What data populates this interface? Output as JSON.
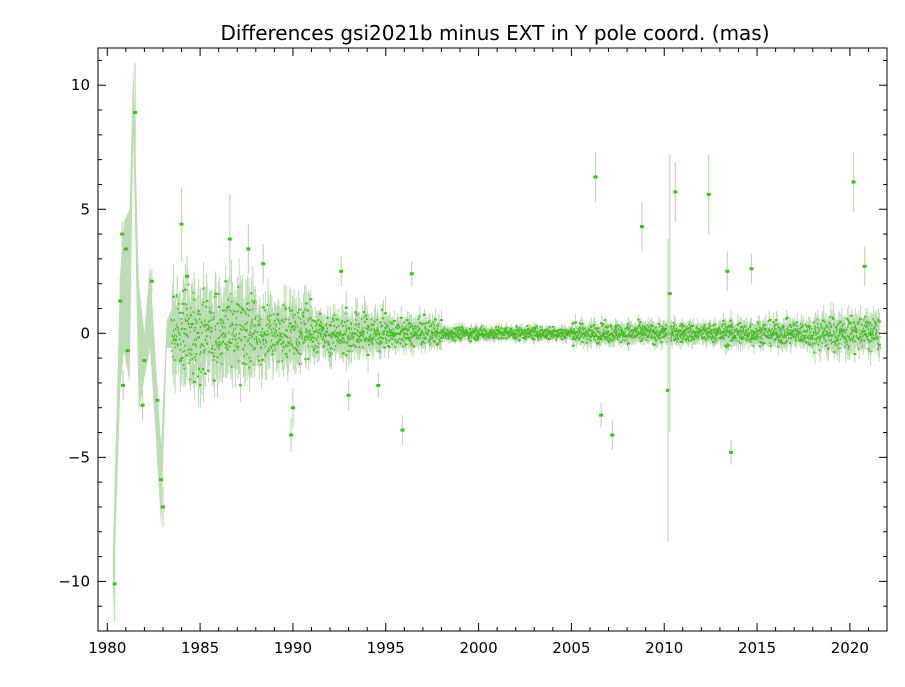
{
  "chart_data": {
    "type": "scatter",
    "title": "Differences gsi2021b minus EXT in Y pole coord. (mas)",
    "xlabel": "",
    "ylabel": "",
    "xlim": [
      1979.5,
      2022.0
    ],
    "ylim": [
      -12.0,
      11.5
    ],
    "x_ticks": [
      1980,
      1985,
      1990,
      1995,
      2000,
      2005,
      2010,
      2015,
      2020
    ],
    "y_ticks": [
      -10,
      -5,
      0,
      5,
      10
    ],
    "x_tick_labels": [
      "1980",
      "1985",
      "1990",
      "1995",
      "2000",
      "2005",
      "2010",
      "2015",
      "2020"
    ],
    "y_tick_labels": [
      "−10",
      "−5",
      "0",
      "5",
      "10"
    ],
    "grid": false,
    "colors": {
      "points": "#44bb22",
      "error_bars": "#bcdcb4",
      "axes": "#000000"
    },
    "early_band": {
      "x": [
        1980.3,
        1980.7,
        1980.9,
        1981.2,
        1981.4,
        1981.7,
        1982.0,
        1982.3,
        1982.6,
        1982.9,
        1983.2,
        1983.5,
        1983.9
      ],
      "upper": [
        -8.8,
        2.5,
        4.5,
        5.0,
        10.9,
        2.0,
        0.0,
        2.8,
        -1.0,
        -4.5,
        0.5,
        1.0,
        1.2
      ],
      "lower": [
        -11.6,
        -2.2,
        -0.7,
        -2.0,
        8.0,
        -3.2,
        -1.8,
        -0.6,
        -4.0,
        -7.8,
        -0.6,
        -0.6,
        -0.8
      ]
    },
    "highlighted_points": [
      {
        "x": 1980.4,
        "y": -10.1,
        "err": 1.5
      },
      {
        "x": 1980.7,
        "y": 1.3,
        "err": 1.0
      },
      {
        "x": 1980.8,
        "y": 4.0,
        "err": 0.5
      },
      {
        "x": 1980.85,
        "y": -2.1,
        "err": 0.6
      },
      {
        "x": 1981.0,
        "y": 3.4,
        "err": 0.6
      },
      {
        "x": 1981.1,
        "y": -0.7,
        "err": 0.5
      },
      {
        "x": 1981.5,
        "y": 8.9,
        "err": 2.0
      },
      {
        "x": 1981.9,
        "y": -2.9,
        "err": 0.6
      },
      {
        "x": 1982.0,
        "y": -1.1,
        "err": 0.5
      },
      {
        "x": 1982.4,
        "y": 2.1,
        "err": 0.5
      },
      {
        "x": 1982.7,
        "y": -2.7,
        "err": 0.4
      },
      {
        "x": 1982.9,
        "y": -5.9,
        "err": 0.8
      },
      {
        "x": 1983.0,
        "y": -7.0,
        "err": 0.8
      },
      {
        "x": 1984.0,
        "y": 4.4,
        "err": 1.5
      },
      {
        "x": 1984.3,
        "y": 2.3,
        "err": 0.8
      },
      {
        "x": 1986.6,
        "y": 3.8,
        "err": 1.8
      },
      {
        "x": 1987.6,
        "y": 3.4,
        "err": 1.0
      },
      {
        "x": 1988.4,
        "y": 2.8,
        "err": 0.8
      },
      {
        "x": 1989.9,
        "y": -4.1,
        "err": 0.7
      },
      {
        "x": 1990.0,
        "y": -3.0,
        "err": 0.8
      },
      {
        "x": 1992.6,
        "y": 2.5,
        "err": 0.6
      },
      {
        "x": 1993.0,
        "y": -2.5,
        "err": 0.6
      },
      {
        "x": 1994.6,
        "y": -2.1,
        "err": 0.5
      },
      {
        "x": 1995.9,
        "y": -3.9,
        "err": 0.6
      },
      {
        "x": 1996.4,
        "y": 2.4,
        "err": 0.5
      },
      {
        "x": 2006.3,
        "y": 6.3,
        "err": 1.0
      },
      {
        "x": 2006.6,
        "y": -3.3,
        "err": 0.5
      },
      {
        "x": 2007.2,
        "y": -4.1,
        "err": 0.6
      },
      {
        "x": 2008.8,
        "y": 4.3,
        "err": 1.0
      },
      {
        "x": 2010.2,
        "y": -2.3,
        "err": 6.1
      },
      {
        "x": 2010.3,
        "y": 1.6,
        "err": 5.6
      },
      {
        "x": 2010.6,
        "y": 5.7,
        "err": 1.2
      },
      {
        "x": 2012.4,
        "y": 5.6,
        "err": 1.6
      },
      {
        "x": 2013.4,
        "y": 2.5,
        "err": 0.8
      },
      {
        "x": 2013.6,
        "y": -4.8,
        "err": 0.5
      },
      {
        "x": 2014.7,
        "y": 2.6,
        "err": 0.6
      },
      {
        "x": 2020.2,
        "y": 6.1,
        "err": 1.2
      },
      {
        "x": 2020.8,
        "y": 2.7,
        "err": 0.8
      }
    ]
  }
}
